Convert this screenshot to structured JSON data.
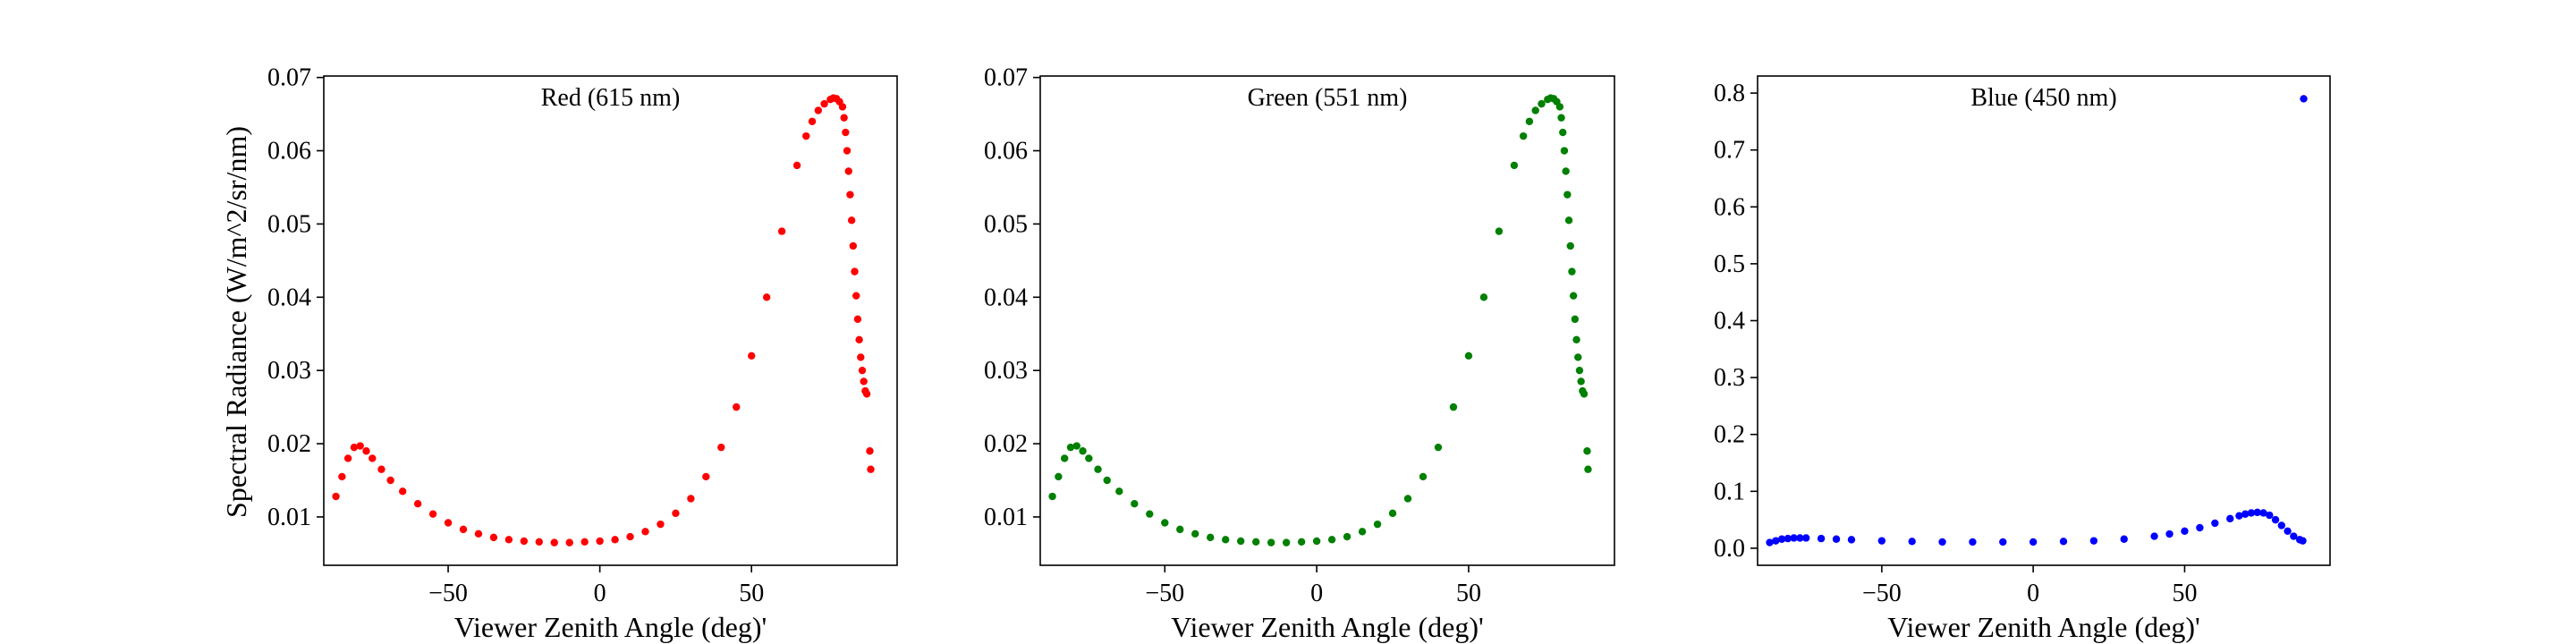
{
  "figure": {
    "ylabel": "Spectral Radiance (W/m^2/sr/nm)"
  },
  "chart_data": [
    {
      "type": "scatter",
      "title": "Red (615 nm)",
      "xlabel": "Viewer Zenith Angle (deg)'",
      "ylabel": "Spectral Radiance (W/m^2/sr/nm)",
      "color": "#ff0000",
      "xlim": [
        -91,
        98
      ],
      "ylim": [
        0.0034,
        0.0702
      ],
      "xticks": [
        -50,
        0,
        50
      ],
      "xtick_labels": [
        "−50",
        "0",
        "50"
      ],
      "yticks": [
        0.01,
        0.02,
        0.03,
        0.04,
        0.05,
        0.06,
        0.07
      ],
      "ytick_labels": [
        "0.01",
        "0.02",
        "0.03",
        "0.04",
        "0.05",
        "0.06",
        "0.07"
      ],
      "series": [
        {
          "x": [
            -87,
            -85,
            -83,
            -81,
            -79,
            -77,
            -75,
            -72,
            -69,
            -65,
            -60,
            -55,
            -50,
            -45,
            -40,
            -35,
            -30,
            -25,
            -20,
            -15,
            -10,
            -5,
            0,
            5,
            10,
            15,
            20,
            25,
            30,
            35,
            40,
            45,
            50,
            55,
            60,
            65,
            68,
            70,
            72,
            74,
            76,
            77,
            78,
            79,
            80,
            80.5,
            81,
            81.5,
            82,
            82.5,
            83,
            83.5,
            84,
            84.5,
            85,
            85.5,
            86,
            86.5,
            87,
            87.5,
            88,
            89,
            89.3
          ],
          "y": [
            0.0128,
            0.0155,
            0.018,
            0.0195,
            0.0197,
            0.019,
            0.018,
            0.0165,
            0.015,
            0.0135,
            0.0118,
            0.0104,
            0.0092,
            0.0083,
            0.0077,
            0.0072,
            0.0069,
            0.0067,
            0.0066,
            0.0065,
            0.0065,
            0.0066,
            0.0067,
            0.0069,
            0.0073,
            0.008,
            0.009,
            0.0105,
            0.0125,
            0.0155,
            0.0195,
            0.025,
            0.032,
            0.04,
            0.049,
            0.058,
            0.062,
            0.064,
            0.0655,
            0.0664,
            0.067,
            0.0672,
            0.0671,
            0.0667,
            0.066,
            0.0645,
            0.0625,
            0.06,
            0.0572,
            0.054,
            0.0505,
            0.047,
            0.0435,
            0.0402,
            0.037,
            0.0342,
            0.0318,
            0.03,
            0.0285,
            0.0272,
            0.0268,
            0.019,
            0.0165
          ]
        }
      ]
    },
    {
      "type": "scatter",
      "title": "Green (551 nm)",
      "xlabel": "Viewer Zenith Angle (deg)'",
      "ylabel": "",
      "color": "#008000",
      "xlim": [
        -91,
        98
      ],
      "ylim": [
        0.0034,
        0.0702
      ],
      "xticks": [
        -50,
        0,
        50
      ],
      "xtick_labels": [
        "−50",
        "0",
        "50"
      ],
      "yticks": [
        0.01,
        0.02,
        0.03,
        0.04,
        0.05,
        0.06,
        0.07
      ],
      "ytick_labels": [
        "0.01",
        "0.02",
        "0.03",
        "0.04",
        "0.05",
        "0.06",
        "0.07"
      ],
      "series": [
        {
          "x": [
            -87,
            -85,
            -83,
            -81,
            -79,
            -77,
            -75,
            -72,
            -69,
            -65,
            -60,
            -55,
            -50,
            -45,
            -40,
            -35,
            -30,
            -25,
            -20,
            -15,
            -10,
            -5,
            0,
            5,
            10,
            15,
            20,
            25,
            30,
            35,
            40,
            45,
            50,
            55,
            60,
            65,
            68,
            70,
            72,
            74,
            76,
            77,
            78,
            79,
            80,
            80.5,
            81,
            81.5,
            82,
            82.5,
            83,
            83.5,
            84,
            84.5,
            85,
            85.5,
            86,
            86.5,
            87,
            87.5,
            88,
            89,
            89.3
          ],
          "y": [
            0.0128,
            0.0155,
            0.018,
            0.0195,
            0.0197,
            0.019,
            0.018,
            0.0165,
            0.015,
            0.0135,
            0.0118,
            0.0104,
            0.0092,
            0.0083,
            0.0077,
            0.0072,
            0.0069,
            0.0067,
            0.0066,
            0.0065,
            0.0065,
            0.0066,
            0.0067,
            0.0069,
            0.0073,
            0.008,
            0.009,
            0.0105,
            0.0125,
            0.0155,
            0.0195,
            0.025,
            0.032,
            0.04,
            0.049,
            0.058,
            0.062,
            0.064,
            0.0655,
            0.0664,
            0.067,
            0.0672,
            0.0671,
            0.0667,
            0.066,
            0.0645,
            0.0625,
            0.06,
            0.0572,
            0.054,
            0.0505,
            0.047,
            0.0435,
            0.0402,
            0.037,
            0.0342,
            0.0318,
            0.03,
            0.0285,
            0.0272,
            0.0268,
            0.019,
            0.0165
          ]
        }
      ]
    },
    {
      "type": "scatter",
      "title": "Blue (450 nm)",
      "xlabel": "Viewer Zenith Angle (deg)'",
      "ylabel": "",
      "color": "#0000ff",
      "xlim": [
        -91,
        98
      ],
      "ylim": [
        -0.03,
        0.83
      ],
      "xticks": [
        -50,
        0,
        50
      ],
      "xtick_labels": [
        "−50",
        "0",
        "50"
      ],
      "yticks": [
        0.0,
        0.1,
        0.2,
        0.3,
        0.4,
        0.5,
        0.6,
        0.7,
        0.8
      ],
      "ytick_labels": [
        "0.0",
        "0.1",
        "0.2",
        "0.3",
        "0.4",
        "0.5",
        "0.6",
        "0.7",
        "0.8"
      ],
      "series": [
        {
          "x": [
            -87,
            -85,
            -83,
            -81,
            -79,
            -77,
            -75,
            -70,
            -65,
            -60,
            -50,
            -40,
            -30,
            -20,
            -10,
            0,
            10,
            20,
            30,
            40,
            45,
            50,
            55,
            60,
            65,
            68,
            70,
            72,
            74,
            76,
            78,
            80,
            82,
            84,
            86,
            88,
            89,
            89.3
          ],
          "y": [
            0.01,
            0.013,
            0.016,
            0.017,
            0.018,
            0.018,
            0.018,
            0.017,
            0.016,
            0.015,
            0.013,
            0.012,
            0.011,
            0.011,
            0.011,
            0.011,
            0.012,
            0.013,
            0.016,
            0.021,
            0.025,
            0.03,
            0.036,
            0.044,
            0.052,
            0.057,
            0.06,
            0.062,
            0.063,
            0.062,
            0.058,
            0.05,
            0.04,
            0.03,
            0.021,
            0.015,
            0.013,
            0.79
          ]
        }
      ]
    }
  ]
}
